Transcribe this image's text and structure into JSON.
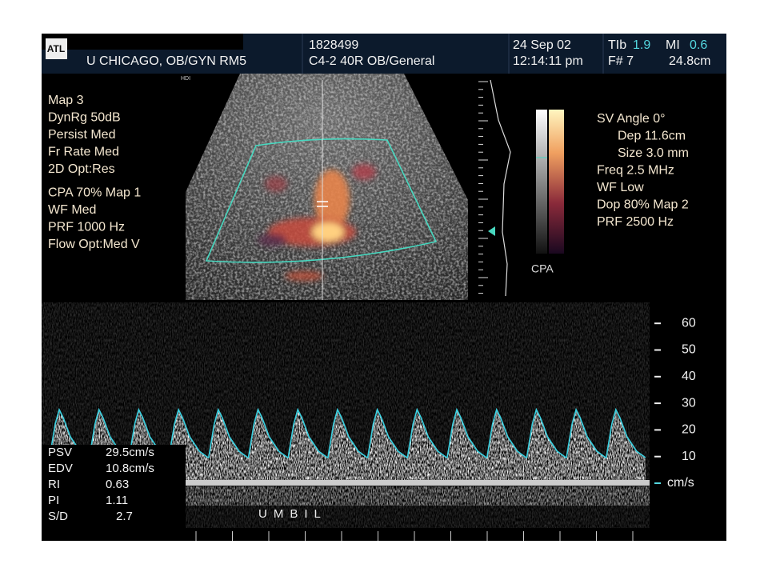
{
  "header": {
    "logo": "ATL",
    "site": "U CHICAGO, OB/GYN RM5",
    "patient_id": "1828499",
    "transducer": "C4-2 40R OB/General",
    "date": "24 Sep 02",
    "time": "12:14:11 pm",
    "tib_label": "TIb",
    "tib_value": "1.9",
    "mi_label": "MI",
    "mi_value": "0.6",
    "frame": "F# 7",
    "depth": "24.8cm",
    "system": "HDI"
  },
  "imaging_settings": [
    "Map 3",
    "DynRg 50dB",
    "Persist Med",
    "Fr Rate Med",
    "2D Opt:Res",
    "CPA 70%  Map 1",
    "WF Med",
    "PRF 1000  Hz",
    "Flow Opt:Med V"
  ],
  "doppler_settings": [
    "SV Angle 0°",
    "Dep 11.6cm",
    "Size 3.0  mm",
    "Freq 2.5  MHz",
    "WF Low",
    "Dop 80%  Map 2",
    "PRF 2500  Hz"
  ],
  "colorbar_label": "CPA",
  "spectral_scale": {
    "ticks": [
      60,
      50,
      40,
      30,
      20,
      10
    ],
    "unit": "cm/s"
  },
  "measurements": [
    [
      "PSV",
      "29.5cm/s"
    ],
    [
      "EDV",
      "10.8cm/s"
    ],
    [
      "RI",
      "0.63"
    ],
    [
      "PI",
      "1.11"
    ],
    [
      "S/D",
      "2.7"
    ]
  ],
  "vessel_label": "UMBIL"
}
